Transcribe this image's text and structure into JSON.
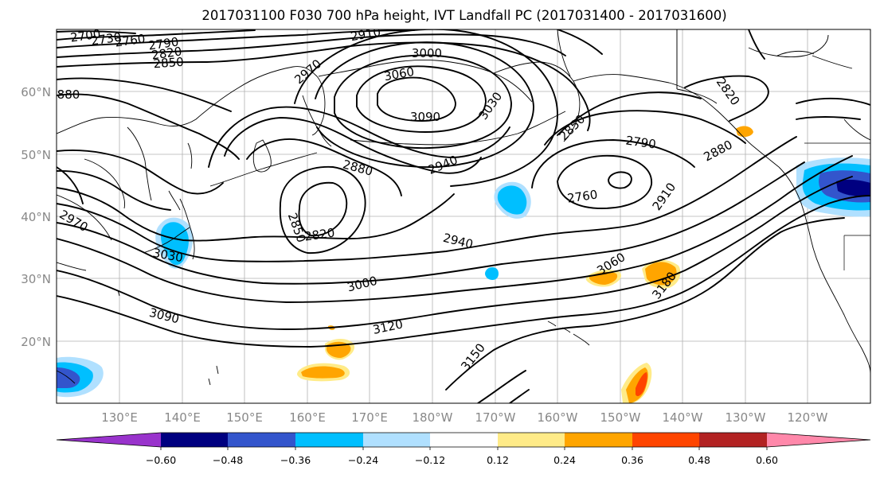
{
  "title": "2017031100 F030 700 hPa height, IVT Landfall PC (2017031400 - 2017031600)",
  "longitude_labels": [
    "130°E",
    "140°E",
    "150°E",
    "160°E",
    "170°E",
    "180°W",
    "170°W",
    "160°W",
    "150°W",
    "140°W",
    "130°W",
    "120°W"
  ],
  "latitude_labels": [
    "60°N",
    "50°N",
    "40°N",
    "30°N",
    "20°N"
  ],
  "colorbar": {
    "ticks": [
      "−0.60",
      "−0.48",
      "−0.36",
      "−0.24",
      "−0.12",
      "0.12",
      "0.24",
      "0.36",
      "0.48",
      "0.60"
    ],
    "colors": [
      "#9933cc",
      "#000080",
      "#3355cc",
      "#00bfff",
      "#b0e0ff",
      "#ffffff",
      "#ffeb88",
      "#ffa500",
      "#ff4500",
      "#b22222",
      "#ff88aa"
    ]
  },
  "contour_labels": [
    "2700",
    "2730",
    "2760",
    "2790",
    "2820",
    "2850",
    "2910",
    "3000",
    "3060",
    "3090",
    "3030",
    "2970",
    "880",
    "2850",
    "2790",
    "2820",
    "2880",
    "2760",
    "2910",
    "2880",
    "2940",
    "2850",
    "2820",
    "2970",
    "2940",
    "3000",
    "3060",
    "3180",
    "3090",
    "3120",
    "3150",
    "3030"
  ]
}
